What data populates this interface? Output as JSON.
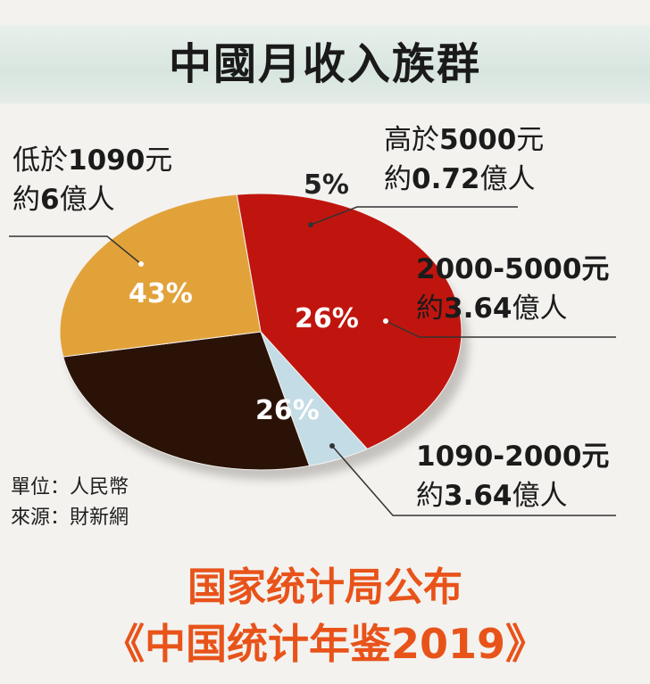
{
  "title": "中國月收入族群",
  "chart_data": {
    "type": "pie",
    "title": "中國月收入族群",
    "slices": [
      {
        "label": "低於1090元",
        "people": "約6億人",
        "value": 43,
        "pct_label": "43%",
        "color": "#c0150f"
      },
      {
        "label": "高於5000元",
        "people": "約0.72億人",
        "value": 5,
        "pct_label": "5%",
        "color": "#c4dce6"
      },
      {
        "label": "2000-5000元",
        "people": "約3.64億人",
        "value": 26,
        "pct_label": "26%",
        "color": "#2b1207"
      },
      {
        "label": "1090-2000元",
        "people": "約3.64億人",
        "value": 26,
        "pct_label": "26%",
        "color": "#e2a23a"
      }
    ]
  },
  "labels": {
    "low_line1_a": "低於",
    "low_line1_b": "1090",
    "low_line1_c": "元",
    "low_line2_a": "約",
    "low_line2_b": "6",
    "low_line2_c": "億人",
    "high_line1_a": "高於",
    "high_line1_b": "5000",
    "high_line1_c": "元",
    "high_line2_a": "約",
    "high_line2_b": "0.72",
    "high_line2_c": "億人",
    "mid_line1": "2000-5000元",
    "mid_line2_a": "約",
    "mid_line2_b": "3.64",
    "mid_line2_c": "億人",
    "lowmid_line1": "1090-2000元",
    "lowmid_line2_a": "約",
    "lowmid_line2_b": "3.64",
    "lowmid_line2_c": "億人"
  },
  "notes": {
    "unit": "單位：人民幣",
    "source": "來源：財新網"
  },
  "footer": {
    "line1": "国家统计局公布",
    "line2": "《中国统计年鉴2019》"
  }
}
